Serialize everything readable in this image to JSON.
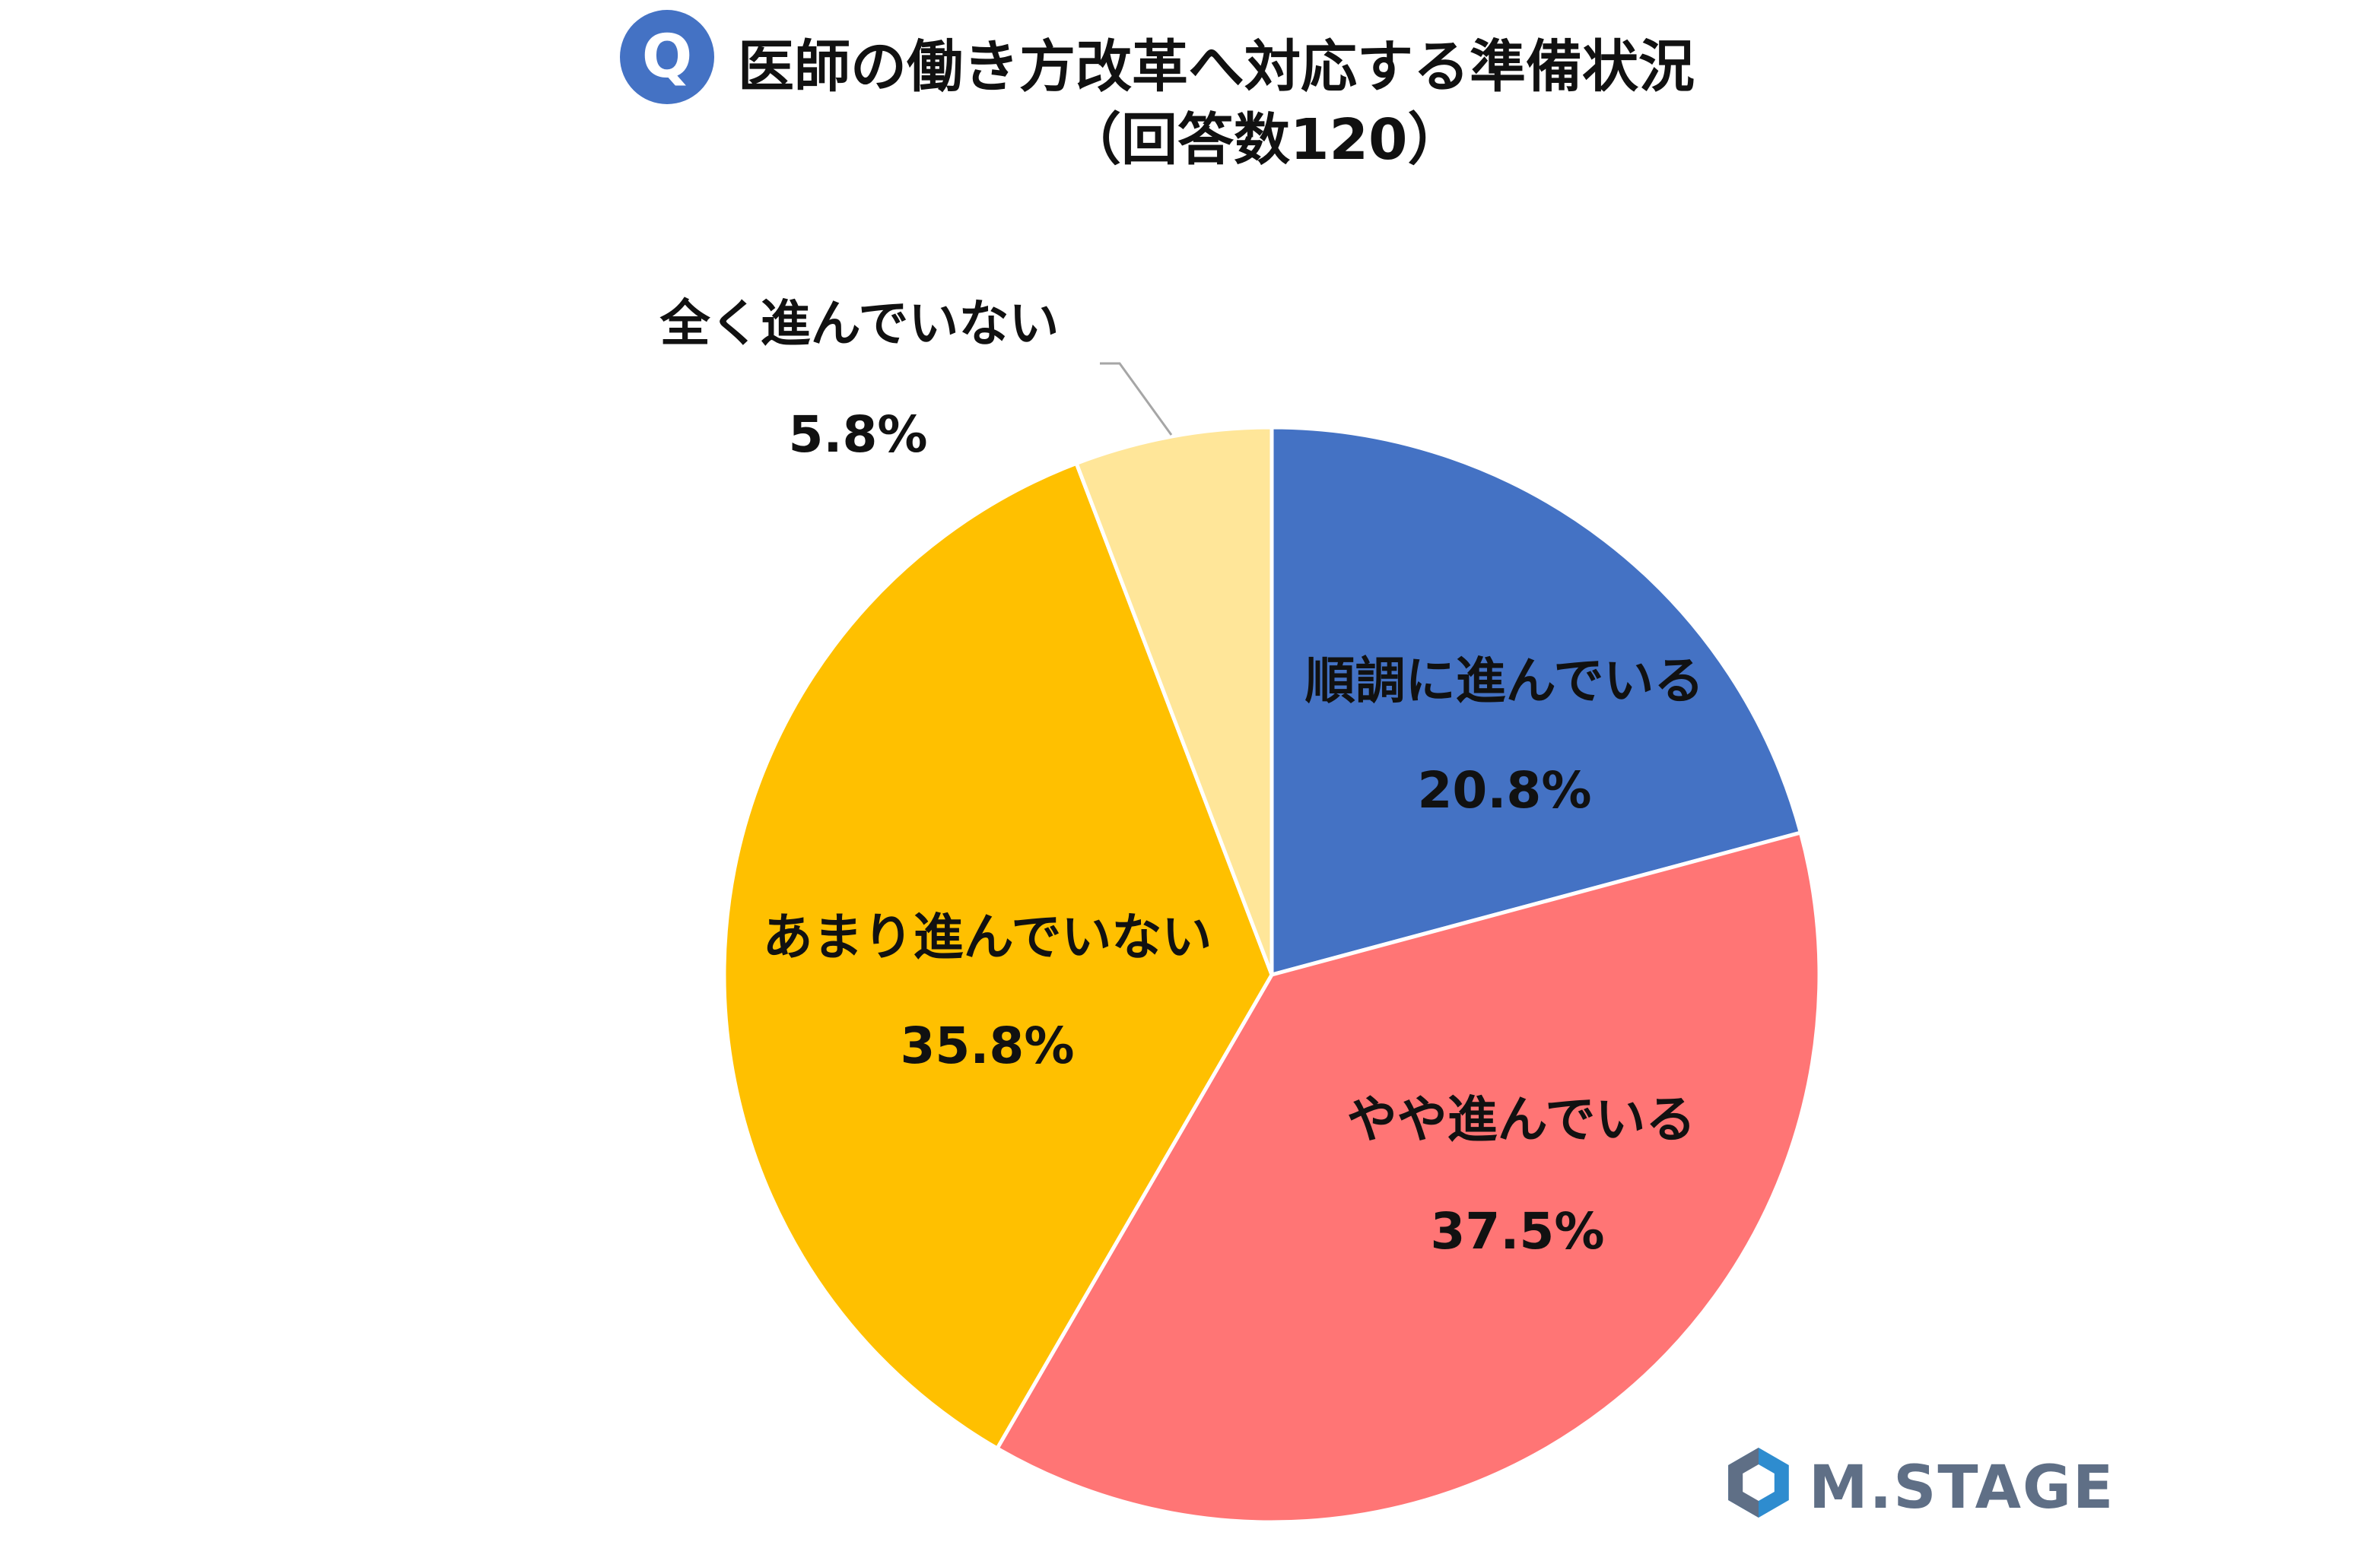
{
  "title": {
    "badge": "Q",
    "line1": "医師の働き方改革へ対応する準備状況",
    "line2": "（回答数120）"
  },
  "colors": {
    "badge": "#4472c4",
    "slice_1": "#4472c4",
    "slice_2": "#ff7575",
    "slice_3": "#ffc000",
    "slice_4": "#ffe699",
    "logo": "#5f6f86",
    "logo_accent": "#2e8ccf"
  },
  "chart_data": {
    "type": "pie",
    "slices": [
      {
        "label": "順調に進んでいる",
        "value": 20.8,
        "value_label": "20.8%"
      },
      {
        "label": "やや進んでいる",
        "value": 37.5,
        "value_label": "37.5%"
      },
      {
        "label": "あまり進んでいない",
        "value": 35.8,
        "value_label": "35.8%"
      },
      {
        "label": "全く進んでいない",
        "value": 5.8,
        "value_label": "5.8%"
      }
    ]
  },
  "logo": {
    "text": "M.STAGE"
  }
}
